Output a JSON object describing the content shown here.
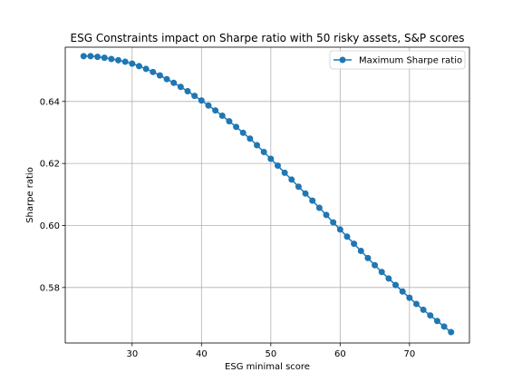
{
  "chart_data": {
    "type": "line",
    "title": "ESG Constraints impact on Sharpe ratio with 50 risky assets, S&P scores",
    "xlabel": "ESG minimal score",
    "ylabel": "Sharpe ratio",
    "xlim": [
      20.35,
      78.65
    ],
    "ylim": [
      0.5621,
      0.6575
    ],
    "xticks": [
      30,
      40,
      50,
      60,
      70
    ],
    "xtick_labels": [
      "30",
      "40",
      "50",
      "60",
      "70"
    ],
    "yticks": [
      0.58,
      0.6,
      0.62,
      0.64
    ],
    "ytick_labels": [
      "0.58",
      "0.60",
      "0.62",
      "0.64"
    ],
    "grid": true,
    "legend_position": "top-right",
    "series": [
      {
        "name": "Maximum Sharpe ratio",
        "color": "#1f77b4",
        "marker": "circle",
        "x": [
          23,
          24,
          25,
          26,
          27,
          28,
          29,
          30,
          31,
          32,
          33,
          34,
          35,
          36,
          37,
          38,
          39,
          40,
          41,
          42,
          43,
          44,
          45,
          46,
          47,
          48,
          49,
          50,
          51,
          52,
          53,
          54,
          55,
          56,
          57,
          58,
          59,
          60,
          61,
          62,
          63,
          64,
          65,
          66,
          67,
          68,
          69,
          70,
          71,
          72,
          73,
          74,
          75,
          76
        ],
        "y": [
          0.6546,
          0.6546,
          0.6544,
          0.6541,
          0.6537,
          0.6533,
          0.6528,
          0.6522,
          0.6514,
          0.6505,
          0.6495,
          0.6484,
          0.6472,
          0.646,
          0.6447,
          0.6433,
          0.6418,
          0.6403,
          0.6387,
          0.6371,
          0.6354,
          0.6336,
          0.6318,
          0.6299,
          0.628,
          0.6259,
          0.6237,
          0.6215,
          0.6193,
          0.617,
          0.6148,
          0.6125,
          0.6103,
          0.608,
          0.6057,
          0.6034,
          0.601,
          0.5987,
          0.5964,
          0.5941,
          0.5918,
          0.5895,
          0.5872,
          0.585,
          0.5829,
          0.5808,
          0.5787,
          0.5767,
          0.5747,
          0.5728,
          0.571,
          0.5692,
          0.5674,
          0.5656
        ]
      }
    ]
  }
}
